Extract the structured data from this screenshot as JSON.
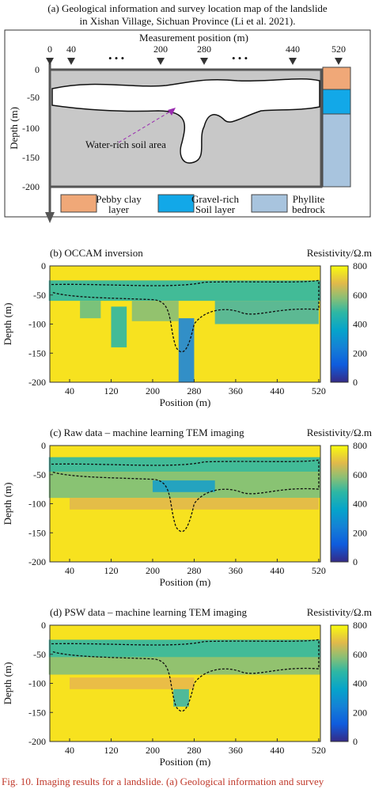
{
  "panel_a": {
    "title_lines": [
      "(a) Geological information and survey location map of the landslide",
      "in Xishan Village, Sichuan Province (Li et al. 2021)."
    ],
    "x_axis_label": "Measurement position (m)",
    "x_ticks": [
      "0",
      "40",
      "200",
      "280",
      "440",
      "520"
    ],
    "y_axis_label": "Depth (m)",
    "y_ticks": [
      "0",
      "-50",
      "-100",
      "-150",
      "-200"
    ],
    "annotation": "Water-rich soil area",
    "legend": [
      [
        "Pebby clay",
        "layer"
      ],
      [
        "Gravel-rich",
        "Soil layer"
      ],
      [
        "Phyllite",
        "bedrock"
      ]
    ]
  },
  "panels": [
    {
      "title": "(b) OCCAM inversion",
      "colorbar_label": "Resistivity/Ω.m",
      "colorbar_ticks": [
        "800",
        "600",
        "400",
        "200",
        "0"
      ],
      "x_label": "Position (m)",
      "y_label": "Depth (m)",
      "x_ticks": [
        "40",
        "120",
        "200",
        "280",
        "360",
        "440",
        "520"
      ],
      "y_ticks": [
        "0",
        "-50",
        "-100",
        "-150",
        "-200"
      ]
    },
    {
      "title": "(c) Raw data – machine learning TEM imaging",
      "colorbar_label": "Resistivity/Ω.m",
      "colorbar_ticks": [
        "800",
        "600",
        "400",
        "200",
        "0"
      ],
      "x_label": "Position (m)",
      "y_label": "Depth (m)",
      "x_ticks": [
        "40",
        "120",
        "200",
        "280",
        "360",
        "440",
        "520"
      ],
      "y_ticks": [
        "0",
        "-50",
        "-100",
        "-150",
        "-200"
      ]
    },
    {
      "title": "(d) PSW data – machine learning TEM imaging",
      "colorbar_label": "Resistivity/Ω.m",
      "colorbar_ticks": [
        "800",
        "600",
        "400",
        "200",
        "0"
      ],
      "x_label": "Position (m)",
      "y_label": "Depth (m)",
      "x_ticks": [
        "40",
        "120",
        "200",
        "280",
        "360",
        "440",
        "520"
      ],
      "y_ticks": [
        "0",
        "-50",
        "-100",
        "-150",
        "-200"
      ]
    }
  ],
  "caption": "Fig. 10. Imaging results for a landslide. (a) Geological information and survey"
}
